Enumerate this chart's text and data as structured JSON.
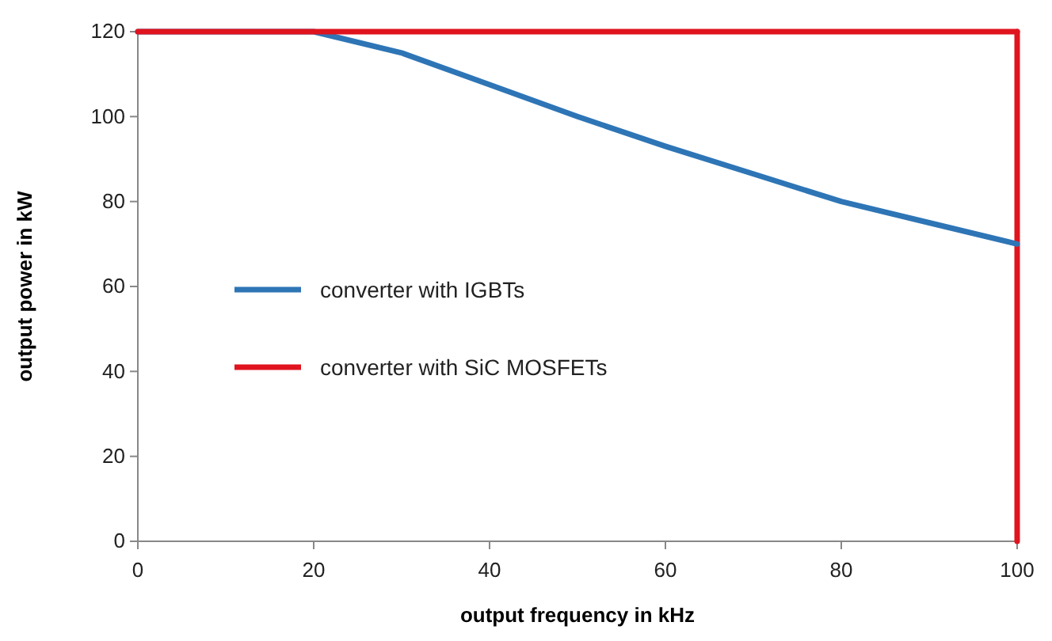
{
  "chart_data": {
    "type": "line",
    "xlabel": "output frequency in kHz",
    "ylabel": "output power in kW",
    "xlim": [
      0,
      100
    ],
    "ylim": [
      0,
      120
    ],
    "xticks": [
      0,
      20,
      40,
      60,
      80,
      100
    ],
    "yticks": [
      0,
      20,
      40,
      60,
      80,
      100,
      120
    ],
    "legend": "left",
    "grid": false,
    "marker": "none",
    "line_style": "solid",
    "series": [
      {
        "name": "converter with IGBTs",
        "color": "#2e75b6",
        "x": [
          0,
          20,
          30,
          40,
          50,
          60,
          70,
          80,
          90,
          100
        ],
        "values": [
          120,
          120,
          115,
          107.5,
          100,
          93,
          86.5,
          80,
          75,
          70
        ]
      },
      {
        "name": "converter with SiC MOSFETs",
        "color": "#e0141e",
        "x": [
          0,
          100
        ],
        "values": [
          120,
          120
        ]
      }
    ],
    "ref_lines": [
      {
        "axis": "x",
        "value": 100,
        "color": "#e0141e"
      }
    ]
  }
}
